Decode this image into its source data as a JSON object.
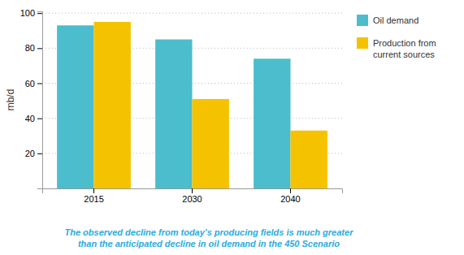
{
  "chart_data": {
    "type": "bar",
    "categories": [
      "2015",
      "2030",
      "2040"
    ],
    "series": [
      {
        "name": "Oil demand",
        "color": "#4BBDCC",
        "values": [
          93,
          85,
          74
        ]
      },
      {
        "name": "Production from\ncurrent sources",
        "color": "#F5C200",
        "values": [
          95,
          51,
          33
        ]
      }
    ],
    "y_label": "mb/d",
    "ylim": [
      0,
      101
    ],
    "yticks": [
      20,
      40,
      60,
      80,
      100
    ],
    "grid": true,
    "legend": "right",
    "annotations": [
      {
        "text": "The observed decline from today’s producing fields is much greater\nthan the anticipated decline in oil demand in the 450 Scenario",
        "color": "#29ABE2"
      }
    ]
  }
}
